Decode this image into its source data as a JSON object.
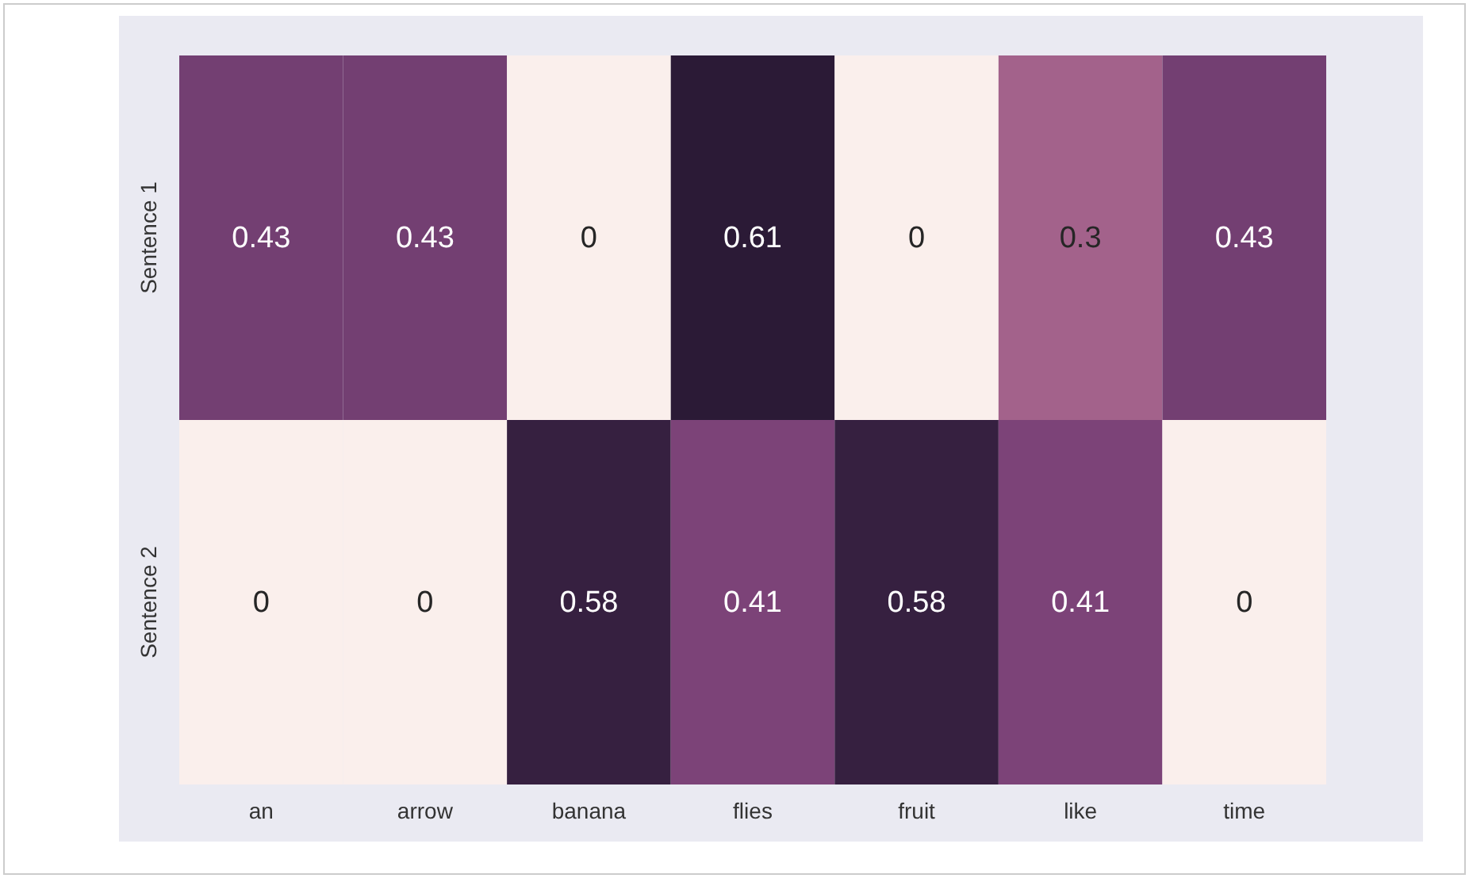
{
  "chart_data": {
    "type": "heatmap",
    "categories": [
      "an",
      "arrow",
      "banana",
      "flies",
      "fruit",
      "like",
      "time"
    ],
    "y_categories": [
      "Sentence 1",
      "Sentence 2"
    ],
    "cells": [
      [
        0.43,
        0.43,
        0,
        0.61,
        0,
        0.3,
        0.43
      ],
      [
        0,
        0,
        0.58,
        0.41,
        0.58,
        0.41,
        0
      ]
    ],
    "data_labels": true
  }
}
